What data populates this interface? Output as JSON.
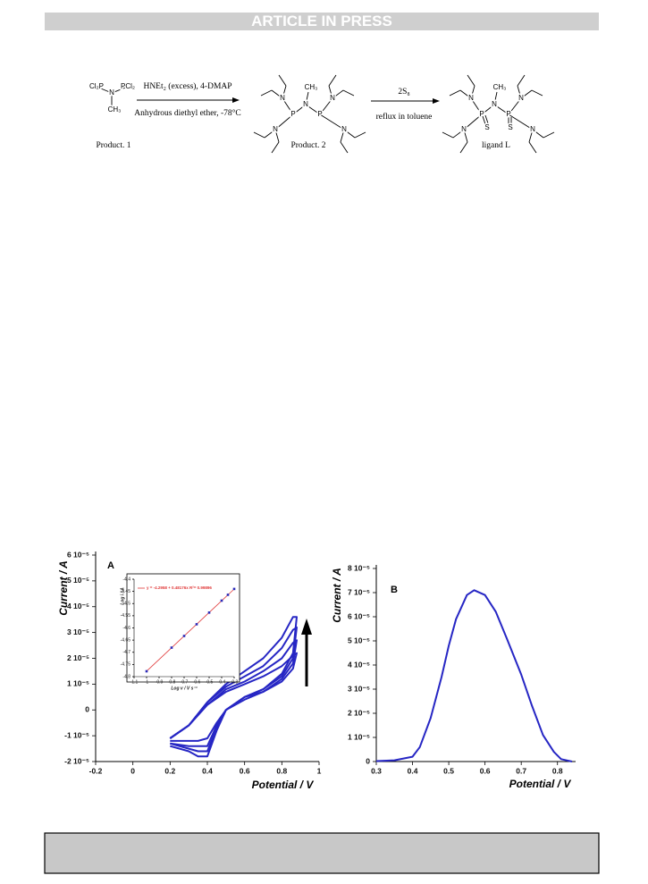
{
  "header": {
    "title": "ARTICLE IN PRESS"
  },
  "scheme": {
    "reagent_1": "HNEt₂ (excess), 4-DMAP",
    "condition_1": "Anhydrous diethyl ether, -78°C",
    "reagent_2": "2S₈",
    "condition_2": "reflux in toluene",
    "molecules": [
      {
        "name": "Product. 1",
        "atoms": [
          "Cl₂P",
          "N",
          "PCl₂",
          "CH₃"
        ]
      },
      {
        "name": "Product. 2",
        "atoms": [
          "N",
          "CH₃",
          "N",
          "N",
          "P",
          "P",
          "N",
          "N"
        ]
      },
      {
        "name": "ligand L",
        "atoms": [
          "N",
          "CH₃",
          "N",
          "N",
          "P",
          "P",
          "N",
          "N",
          "S",
          "S"
        ]
      }
    ]
  },
  "chart_data": [
    {
      "type": "line",
      "panel": "A",
      "xlabel": "Potential / V",
      "ylabel": "Current / A",
      "color": "#2626c4",
      "xlim": [
        -0.2,
        1
      ],
      "xticks": [
        -0.2,
        0,
        0.2,
        0.4,
        0.6,
        0.8,
        1
      ],
      "ylim": [
        -2e-05,
        6e-05
      ],
      "yticks": [
        {
          "value": -2e-05,
          "label": "-2 10⁻⁵"
        },
        {
          "value": -1e-05,
          "label": "-1 10⁻⁵"
        },
        0,
        {
          "value": 1e-05,
          "label": "1 10⁻⁵"
        },
        {
          "value": 2e-05,
          "label": "2 10⁻⁵"
        },
        {
          "value": 3e-05,
          "label": "3 10⁻⁵"
        },
        {
          "value": 4e-05,
          "label": "4 10⁻⁵"
        },
        {
          "value": 5e-05,
          "label": "5 10⁻⁵"
        },
        {
          "value": 6e-05,
          "label": "6 10⁻⁵"
        }
      ],
      "series": [
        {
          "x": [
            0.2,
            0.3,
            0.4,
            0.5,
            0.6,
            0.7,
            0.8,
            0.86,
            0.88,
            0.86,
            0.8,
            0.7,
            0.6,
            0.5,
            0.45,
            0.4,
            0.35,
            0.3,
            0.2
          ],
          "values": [
            -1.1e-05,
            -6e-06,
            3e-06,
            1e-05,
            1.5e-05,
            2e-05,
            2.8e-05,
            3.6e-05,
            3.6e-05,
            2.2e-05,
            1.4e-05,
            8e-06,
            5e-06,
            0.0,
            -8e-06,
            -1.8e-05,
            -1.8e-05,
            -1.6e-05,
            -1.4e-05
          ]
        },
        {
          "x": [
            0.2,
            0.3,
            0.4,
            0.5,
            0.6,
            0.7,
            0.8,
            0.86,
            0.88,
            0.86,
            0.8,
            0.7,
            0.6,
            0.5,
            0.45,
            0.4,
            0.35,
            0.3,
            0.2
          ],
          "values": [
            -1.1e-05,
            -6e-06,
            3e-06,
            9e-06,
            1.3e-05,
            1.7e-05,
            2.4e-05,
            3.1e-05,
            3.2e-05,
            2e-05,
            1.3e-05,
            8e-06,
            5e-06,
            0.0,
            -7e-06,
            -1.6e-05,
            -1.6e-05,
            -1.5e-05,
            -1.3e-05
          ]
        },
        {
          "x": [
            0.2,
            0.3,
            0.4,
            0.5,
            0.6,
            0.7,
            0.8,
            0.86,
            0.88,
            0.86,
            0.8,
            0.7,
            0.6,
            0.5,
            0.45,
            0.4,
            0.35,
            0.3,
            0.2
          ],
          "values": [
            -1.1e-05,
            -6e-06,
            2e-06,
            8e-06,
            1.1e-05,
            1.5e-05,
            2e-05,
            2.6e-05,
            2.7e-05,
            1.8e-05,
            1.2e-05,
            7e-06,
            5e-06,
            0.0,
            -6e-06,
            -1.4e-05,
            -1.4e-05,
            -1.4e-05,
            -1.3e-05
          ]
        },
        {
          "x": [
            0.2,
            0.3,
            0.4,
            0.5,
            0.6,
            0.7,
            0.8,
            0.86,
            0.88,
            0.86,
            0.8,
            0.7,
            0.6,
            0.5,
            0.45,
            0.4,
            0.35,
            0.3,
            0.2
          ],
          "values": [
            -1.1e-05,
            -6e-06,
            2e-06,
            7e-06,
            1e-05,
            1.3e-05,
            1.7e-05,
            2.1e-05,
            2.2e-05,
            1.6e-05,
            1.1e-05,
            7e-06,
            4e-06,
            0.0,
            -5e-06,
            -1.1e-05,
            -1.2e-05,
            -1.2e-05,
            -1.2e-05
          ]
        }
      ]
    },
    {
      "type": "scatter",
      "inset": true,
      "equation": "y = -4.2958 + 0.48176x   R²= 0.99896",
      "xlabel": "Log v / V s⁻¹",
      "ylabel": "Log i / A",
      "color": "#2a2ab8",
      "xlim": [
        -1.1,
        -0.3
      ],
      "xticks": [
        -1.1,
        -1,
        -0.9,
        -0.8,
        -0.7,
        -0.6,
        -0.5,
        -0.4,
        -0.3
      ],
      "ylim": [
        -4.8,
        -4.4
      ],
      "yticks": [
        -4.8,
        -4.75,
        -4.7,
        -4.65,
        -4.6,
        -4.55,
        -4.5,
        -4.45,
        -4.4
      ],
      "x": [
        -1,
        -0.8,
        -0.7,
        -0.6,
        -0.5,
        -0.4,
        -0.35,
        -0.3
      ],
      "values": [
        -4.778,
        -4.681,
        -4.633,
        -4.585,
        -4.537,
        -4.488,
        -4.464,
        -4.44
      ],
      "fit": {
        "color": "#e03a3a",
        "x": [
          -1,
          -0.3
        ],
        "values": [
          -4.7776,
          -4.4403
        ]
      }
    },
    {
      "type": "line",
      "panel": "B",
      "xlabel": "Potential / V",
      "ylabel": "Current / A",
      "color": "#2626c4",
      "xlim": [
        0.3,
        0.85
      ],
      "xticks": [
        0.3,
        0.4,
        0.5,
        0.6,
        0.7,
        0.8
      ],
      "ylim": [
        0,
        8e-05
      ],
      "yticks": [
        0,
        {
          "value": 1e-05,
          "label": "1 10⁻⁵"
        },
        {
          "value": 2e-05,
          "label": "2 10⁻⁵"
        },
        {
          "value": 3e-05,
          "label": "3 10⁻⁵"
        },
        {
          "value": 4e-05,
          "label": "4 10⁻⁵"
        },
        {
          "value": 5e-05,
          "label": "5 10⁻⁵"
        },
        {
          "value": 6e-05,
          "label": "6 10⁻⁵"
        },
        {
          "value": 7e-05,
          "label": "7 10⁻⁵"
        },
        {
          "value": 8e-05,
          "label": "8 10⁻⁵"
        }
      ],
      "series": [
        {
          "x": [
            0.3,
            0.35,
            0.4,
            0.42,
            0.45,
            0.48,
            0.5,
            0.52,
            0.55,
            0.57,
            0.6,
            0.63,
            0.66,
            0.7,
            0.73,
            0.76,
            0.79,
            0.81,
            0.84
          ],
          "values": [
            2e-07,
            5e-07,
            2e-06,
            6e-06,
            1.8e-05,
            3.5e-05,
            4.8e-05,
            5.9e-05,
            6.9e-05,
            7.1e-05,
            6.9e-05,
            6.2e-05,
            5.1e-05,
            3.6e-05,
            2.3e-05,
            1.1e-05,
            4e-06,
            1e-06,
            0.0
          ]
        }
      ]
    }
  ]
}
